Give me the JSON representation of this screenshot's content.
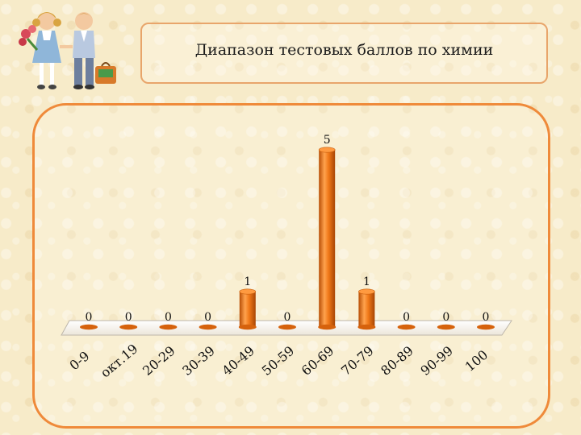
{
  "header": {
    "title": "Диапазон тестовых баллов по химии"
  },
  "colors": {
    "bar": "#f07818",
    "bar_dark": "#b84f06",
    "bar_light": "#ffb066",
    "frame": "#ef8a3a"
  },
  "chart_data": {
    "type": "bar",
    "title": "Диапазон тестовых баллов по химии",
    "categories": [
      "0-9",
      "окт.19",
      "20-29",
      "30-39",
      "40-49",
      "50-59",
      "60-69",
      "70-79",
      "80-89",
      "90-99",
      "100"
    ],
    "values": [
      0,
      0,
      0,
      0,
      1,
      0,
      5,
      1,
      0,
      0,
      0
    ],
    "data_labels": [
      "0",
      "0",
      "0",
      "0",
      "1",
      "0",
      "5",
      "1",
      "0",
      "0",
      "0"
    ],
    "ylim": [
      0,
      5
    ],
    "grid": false,
    "legend": "none",
    "style": "3d-cylinder"
  }
}
